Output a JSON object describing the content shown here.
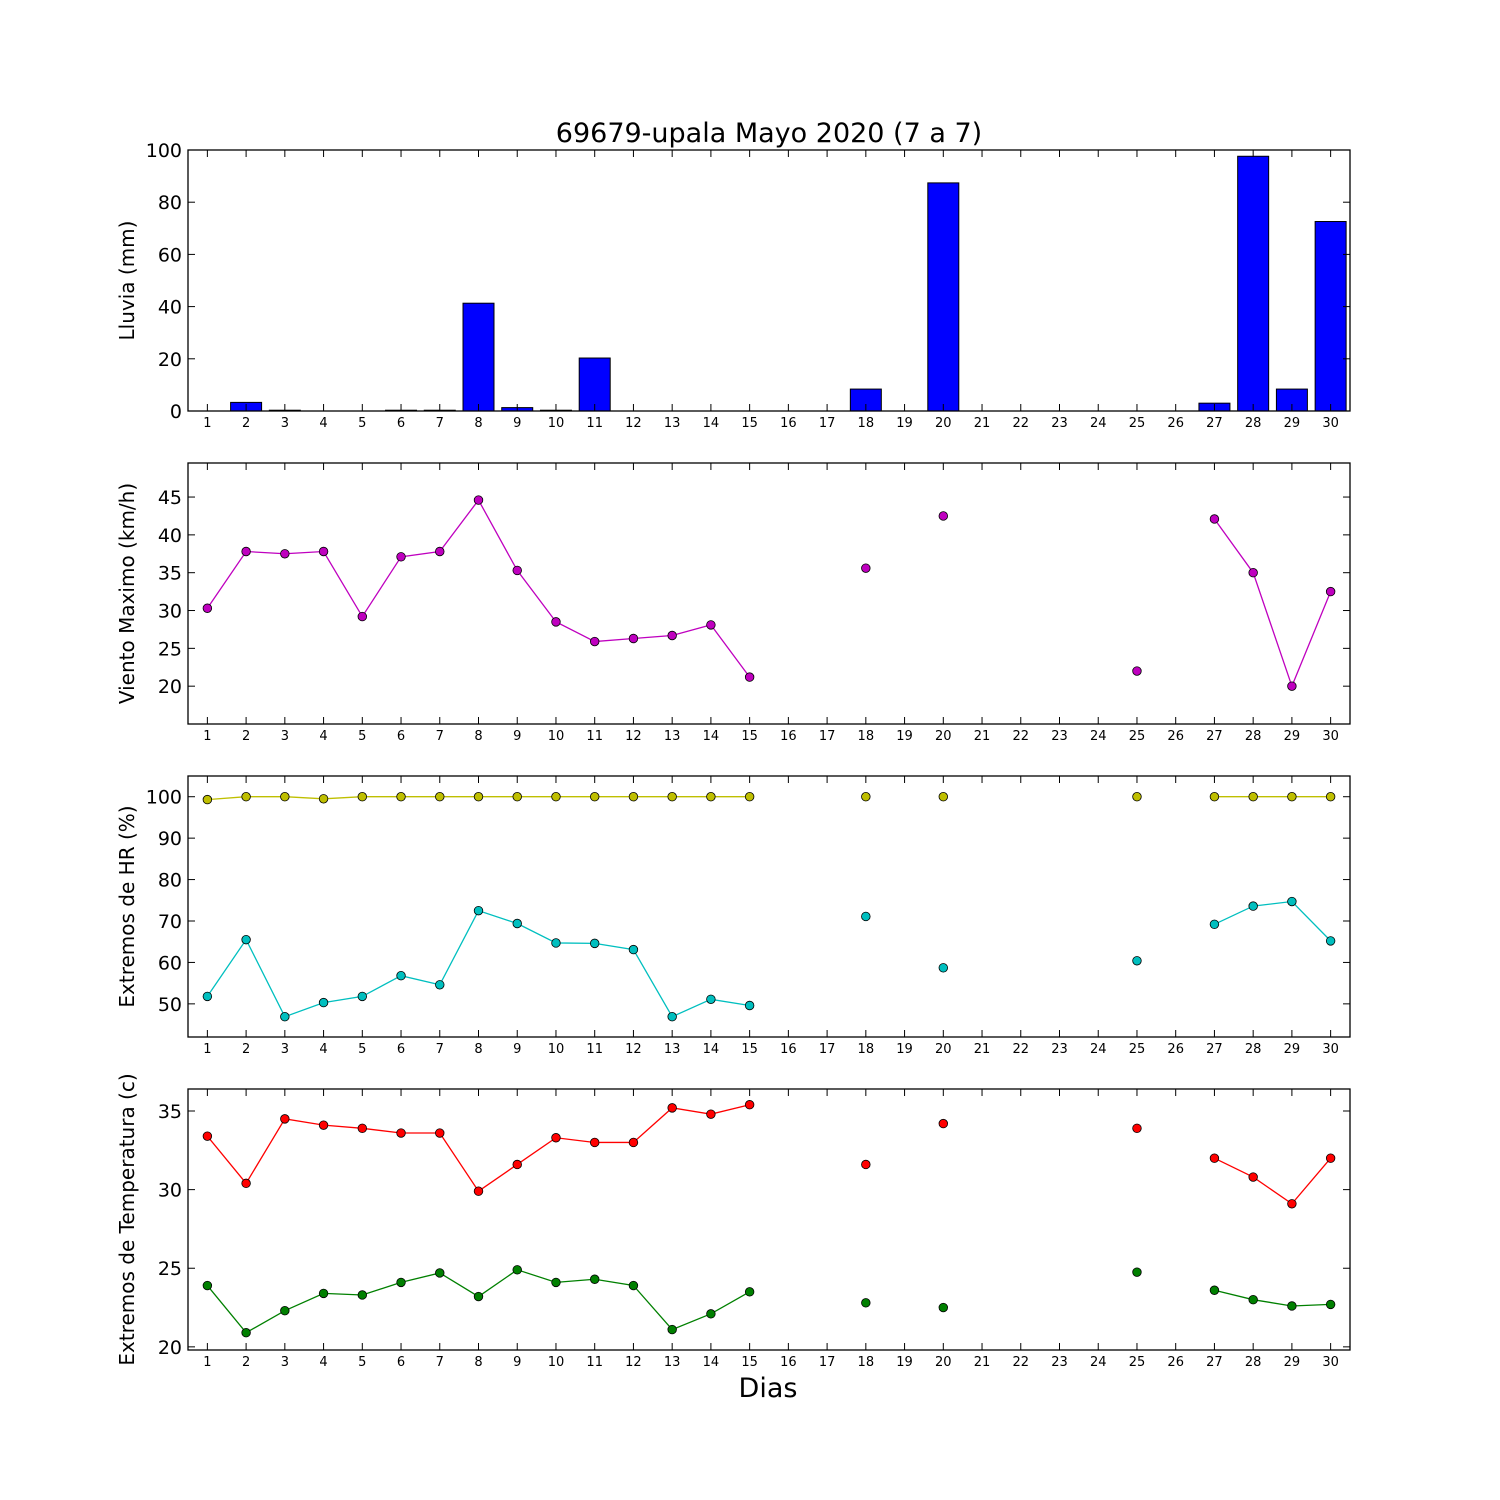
{
  "title": "69679-upala Mayo 2020  (7 a 7)",
  "xlabel": "Dias",
  "chart_data": [
    {
      "type": "bar",
      "ylabel": "Lluvia (mm)",
      "ylim": [
        0,
        100
      ],
      "yticks": [
        0,
        20,
        40,
        60,
        80,
        100
      ],
      "xlim": [
        0.5,
        30.5
      ],
      "xticks": [
        1,
        2,
        3,
        4,
        5,
        6,
        7,
        8,
        9,
        10,
        11,
        12,
        13,
        14,
        15,
        16,
        17,
        18,
        19,
        20,
        21,
        22,
        23,
        24,
        25,
        26,
        27,
        28,
        29,
        30
      ],
      "bar_color": "#0000ff",
      "x": [
        2,
        3,
        6,
        7,
        8,
        9,
        10,
        11,
        18,
        20,
        27,
        28,
        29,
        30
      ],
      "values": [
        3.3,
        0.3,
        0.3,
        0.3,
        41.3,
        1.3,
        0.3,
        20.3,
        8.4,
        87.4,
        3.0,
        97.6,
        8.4,
        72.6
      ]
    },
    {
      "type": "line",
      "ylabel": "Viento Maximo (km/h)",
      "ylim": [
        15,
        49.5
      ],
      "yticks": [
        20,
        25,
        30,
        35,
        40,
        45
      ],
      "xlim": [
        0.5,
        30.5
      ],
      "xticks": [
        1,
        2,
        3,
        4,
        5,
        6,
        7,
        8,
        9,
        10,
        11,
        12,
        13,
        14,
        15,
        16,
        17,
        18,
        19,
        20,
        21,
        22,
        23,
        24,
        25,
        26,
        27,
        28,
        29,
        30
      ],
      "series": [
        {
          "color": "#bf00bf",
          "x": [
            1,
            2,
            3,
            4,
            5,
            6,
            7,
            8,
            9,
            10,
            11,
            12,
            13,
            14,
            15,
            16,
            17,
            18,
            19,
            20,
            21,
            22,
            23,
            24,
            25,
            26,
            27,
            28,
            29,
            30
          ],
          "values": [
            30.3,
            37.8,
            37.5,
            37.8,
            29.2,
            37.1,
            37.8,
            44.6,
            35.3,
            28.5,
            25.9,
            26.3,
            26.7,
            28.1,
            21.2,
            null,
            null,
            35.6,
            null,
            42.5,
            null,
            null,
            null,
            null,
            22.0,
            null,
            42.1,
            35.0,
            20.0,
            32.5
          ]
        }
      ]
    },
    {
      "type": "line",
      "ylabel": "Extremos de HR (%)",
      "ylim": [
        42,
        105
      ],
      "yticks": [
        50,
        60,
        70,
        80,
        90,
        100
      ],
      "xlim": [
        0.5,
        30.5
      ],
      "xticks": [
        1,
        2,
        3,
        4,
        5,
        6,
        7,
        8,
        9,
        10,
        11,
        12,
        13,
        14,
        15,
        16,
        17,
        18,
        19,
        20,
        21,
        22,
        23,
        24,
        25,
        26,
        27,
        28,
        29,
        30
      ],
      "series": [
        {
          "color": "#bfbf00",
          "x": [
            1,
            2,
            3,
            4,
            5,
            6,
            7,
            8,
            9,
            10,
            11,
            12,
            13,
            14,
            15,
            16,
            17,
            18,
            19,
            20,
            21,
            22,
            23,
            24,
            25,
            26,
            27,
            28,
            29,
            30
          ],
          "values": [
            99.3,
            100,
            100,
            99.5,
            100,
            100,
            100,
            100,
            100,
            100,
            100,
            100,
            100,
            100,
            100,
            null,
            null,
            100,
            null,
            100,
            null,
            null,
            null,
            null,
            100,
            null,
            100,
            100,
            100,
            100
          ]
        },
        {
          "color": "#00bfbf",
          "x": [
            1,
            2,
            3,
            4,
            5,
            6,
            7,
            8,
            9,
            10,
            11,
            12,
            13,
            14,
            15,
            16,
            17,
            18,
            19,
            20,
            21,
            22,
            23,
            24,
            25,
            26,
            27,
            28,
            29,
            30
          ],
          "values": [
            51.8,
            65.5,
            46.9,
            50.3,
            51.8,
            56.8,
            54.6,
            72.5,
            69.4,
            64.7,
            64.6,
            63.1,
            46.9,
            51.1,
            49.6,
            null,
            null,
            71.1,
            null,
            58.7,
            null,
            null,
            null,
            null,
            60.4,
            null,
            69.2,
            73.6,
            74.7,
            65.2
          ]
        }
      ]
    },
    {
      "type": "line",
      "ylabel": "Extremos de Temperatura (c)",
      "ylim": [
        19.8,
        36.4
      ],
      "yticks": [
        20,
        25,
        30,
        35
      ],
      "xlim": [
        0.5,
        30.5
      ],
      "xticks": [
        1,
        2,
        3,
        4,
        5,
        6,
        7,
        8,
        9,
        10,
        11,
        12,
        13,
        14,
        15,
        16,
        17,
        18,
        19,
        20,
        21,
        22,
        23,
        24,
        25,
        26,
        27,
        28,
        29,
        30
      ],
      "series": [
        {
          "color": "#ff0000",
          "x": [
            1,
            2,
            3,
            4,
            5,
            6,
            7,
            8,
            9,
            10,
            11,
            12,
            13,
            14,
            15,
            16,
            17,
            18,
            19,
            20,
            21,
            22,
            23,
            24,
            25,
            26,
            27,
            28,
            29,
            30
          ],
          "values": [
            33.4,
            30.4,
            34.5,
            34.1,
            33.9,
            33.6,
            33.6,
            29.9,
            31.6,
            33.3,
            33.0,
            33.0,
            35.2,
            34.8,
            35.4,
            null,
            null,
            31.6,
            null,
            34.2,
            null,
            null,
            null,
            null,
            33.9,
            null,
            32.0,
            30.8,
            29.1,
            32.0
          ]
        },
        {
          "color": "#008000",
          "x": [
            1,
            2,
            3,
            4,
            5,
            6,
            7,
            8,
            9,
            10,
            11,
            12,
            13,
            14,
            15,
            16,
            17,
            18,
            19,
            20,
            21,
            22,
            23,
            24,
            25,
            26,
            27,
            28,
            29,
            30
          ],
          "values": [
            23.9,
            20.9,
            22.3,
            23.4,
            23.3,
            24.1,
            24.7,
            23.2,
            24.9,
            24.1,
            24.3,
            23.9,
            21.1,
            22.1,
            23.5,
            null,
            null,
            22.8,
            null,
            22.5,
            null,
            null,
            null,
            null,
            24.75,
            null,
            23.6,
            23.0,
            22.6,
            22.7
          ]
        }
      ]
    }
  ]
}
